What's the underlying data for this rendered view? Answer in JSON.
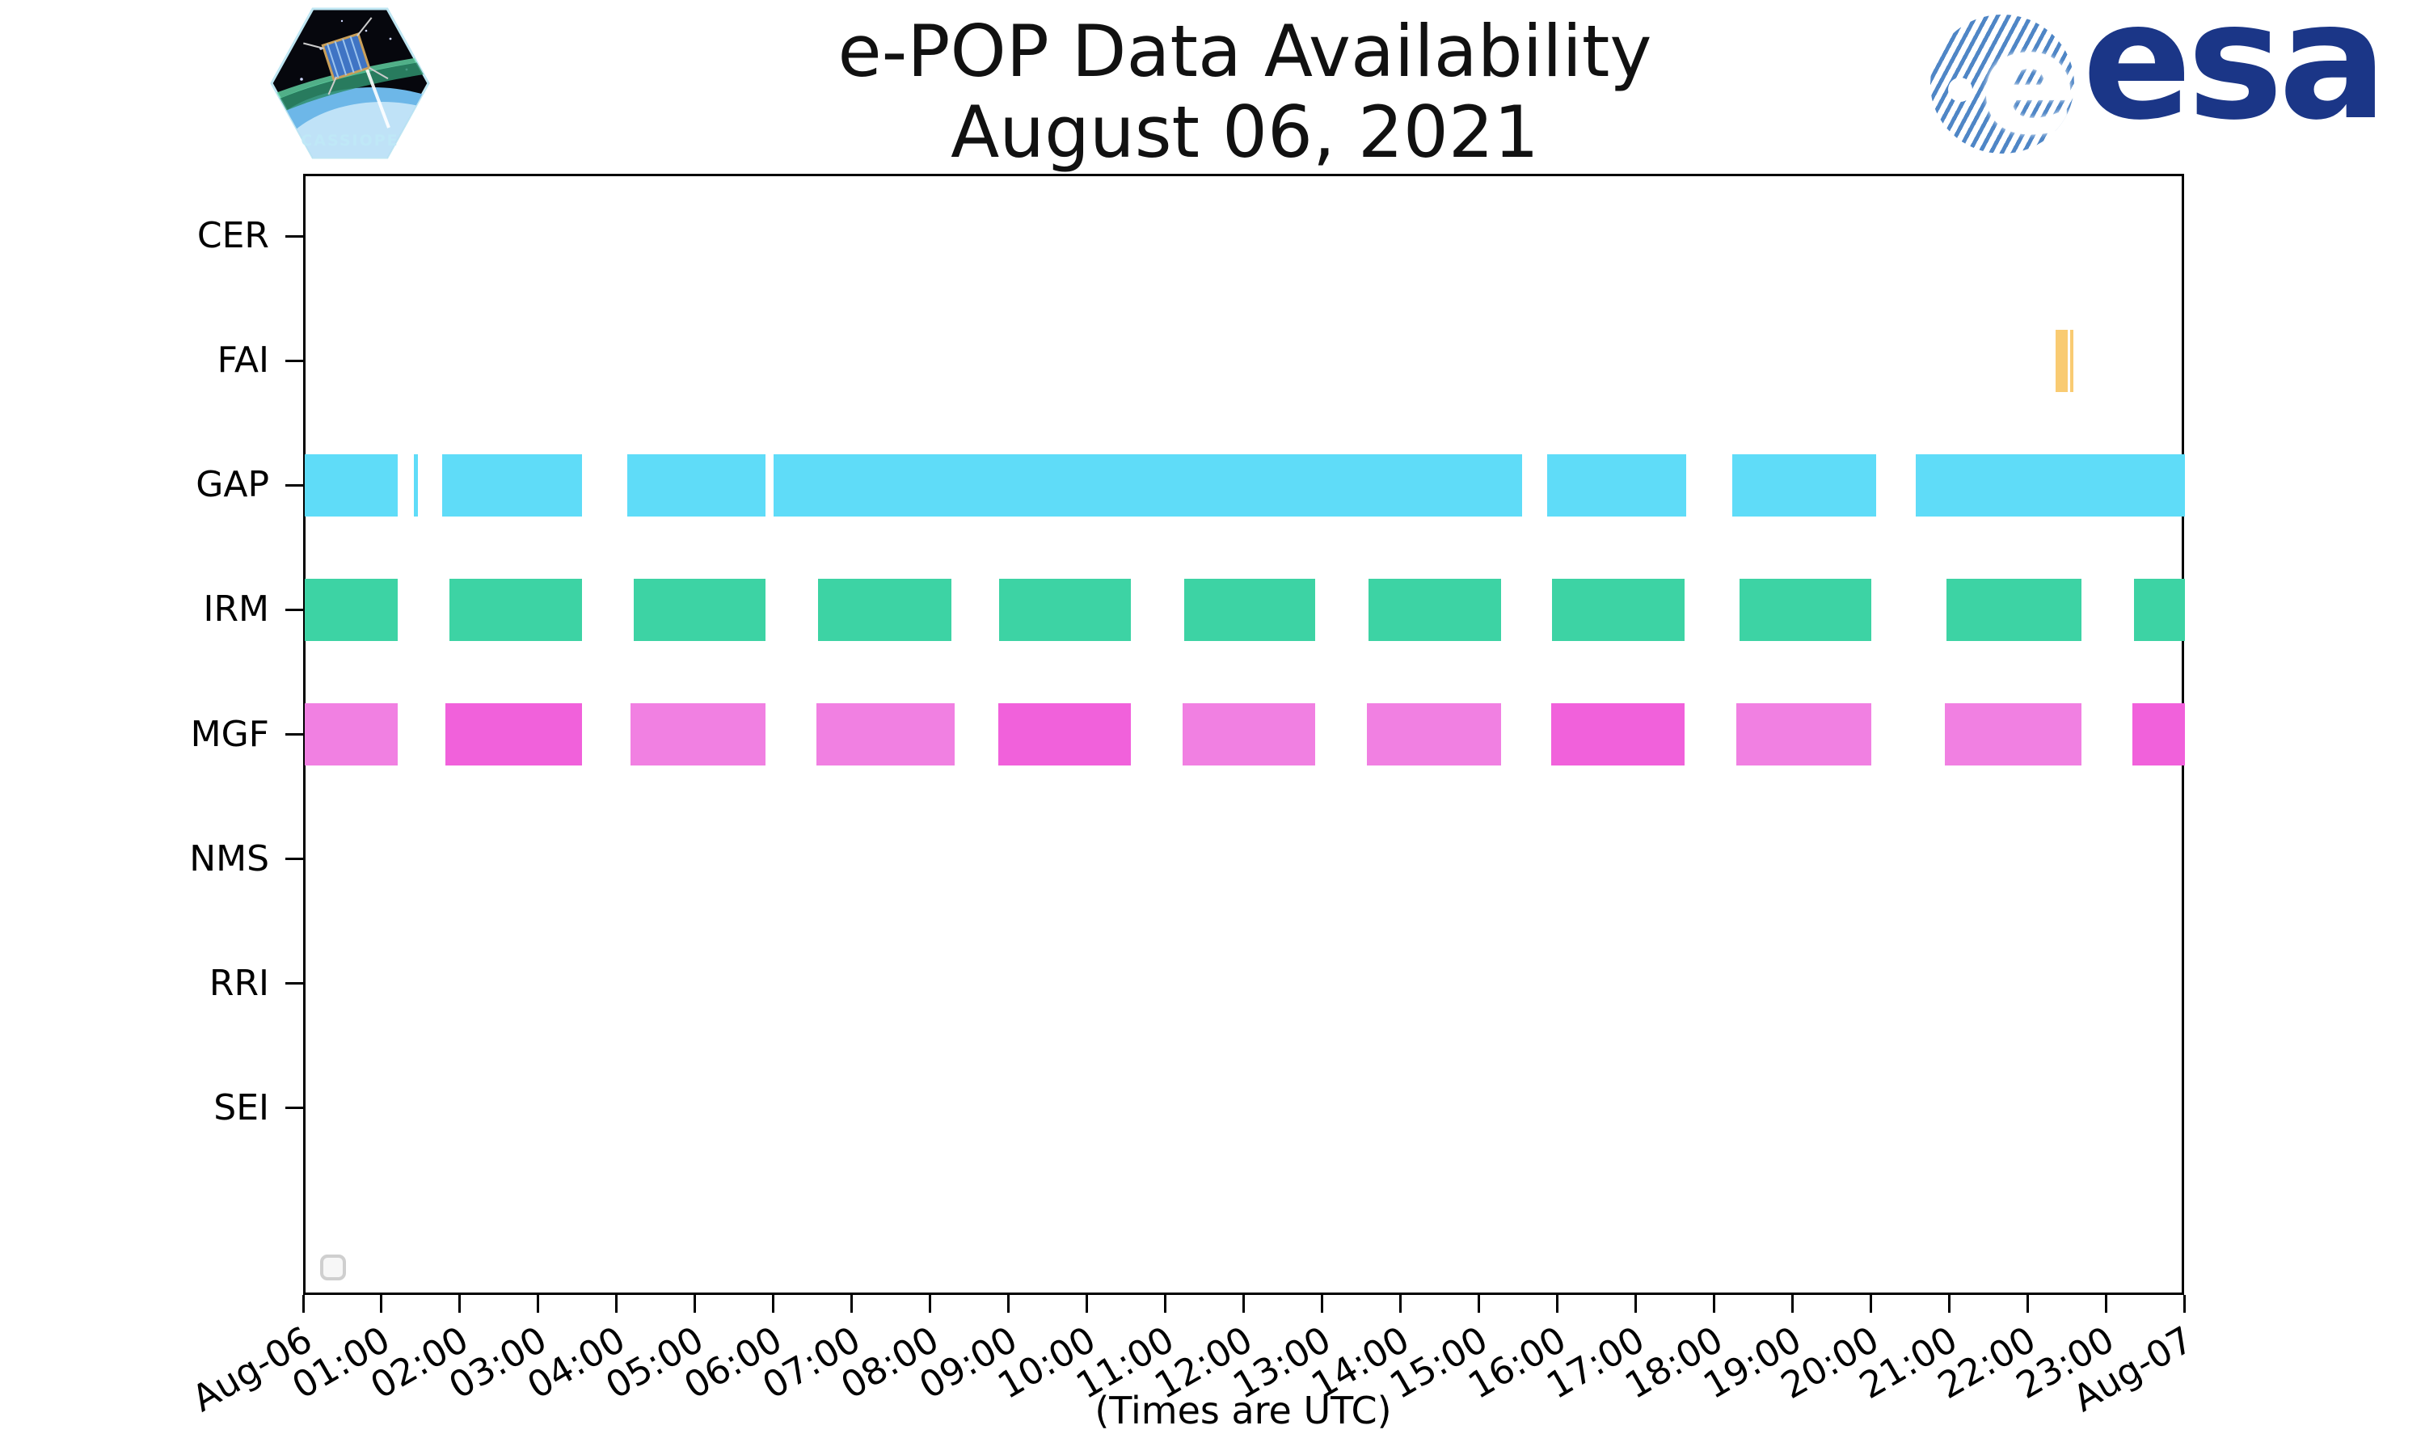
{
  "header": {
    "title_line1": "e-POP Data Availability",
    "title_line2": "August 06, 2021",
    "cassiope_label": "CASSIOPE",
    "esa_label": "esa",
    "esa_glyph": "e"
  },
  "footer": {
    "note": "(Times are UTC)"
  },
  "colors": {
    "fai_orange": "#f9cb72",
    "gap_cyan": "#5fdcf8",
    "irm_green": "#3dd3a4",
    "mgf_light": "#f180e2",
    "mgf_dark": "#f161db",
    "esa_navy": "#1b3687",
    "patch_sky": "#8fd8f2",
    "axis_black": "#000000"
  },
  "chart_data": {
    "type": "timeline",
    "title": "e-POP Data Availability",
    "subtitle": "August 06, 2021",
    "xlabel": "(Times are UTC)",
    "x_range_hours": [
      0,
      24
    ],
    "x_tick_interval_hours": 1,
    "x_tick_labels": [
      "Aug-06",
      "01:00",
      "02:00",
      "03:00",
      "04:00",
      "05:00",
      "06:00",
      "07:00",
      "08:00",
      "09:00",
      "10:00",
      "11:00",
      "12:00",
      "13:00",
      "14:00",
      "15:00",
      "16:00",
      "17:00",
      "18:00",
      "19:00",
      "20:00",
      "21:00",
      "22:00",
      "23:00",
      "Aug-07"
    ],
    "y_categories": [
      "CER",
      "FAI",
      "GAP",
      "IRM",
      "MGF",
      "NMS",
      "RRI",
      "SEI"
    ],
    "grid": false,
    "legend": "empty-box-bottom-left",
    "rows": [
      {
        "label": "CER",
        "color_key": "gap_cyan",
        "segments": []
      },
      {
        "label": "FAI",
        "color_key": "fai_orange",
        "segments": [
          {
            "start": 22.34,
            "end": 22.5
          },
          {
            "start": 22.53,
            "end": 22.57
          }
        ]
      },
      {
        "label": "GAP",
        "color_key": "gap_cyan",
        "segments": [
          {
            "start": 0.0,
            "end": 1.19
          },
          {
            "start": 1.4,
            "end": 1.45
          },
          {
            "start": 1.76,
            "end": 3.54
          },
          {
            "start": 4.12,
            "end": 5.88
          },
          {
            "start": 5.99,
            "end": 15.54
          },
          {
            "start": 15.86,
            "end": 17.63
          },
          {
            "start": 18.22,
            "end": 20.05
          },
          {
            "start": 20.56,
            "end": 24.0
          }
        ]
      },
      {
        "label": "IRM",
        "color_key": "irm_green",
        "segments": [
          {
            "start": 0.0,
            "end": 1.19
          },
          {
            "start": 1.85,
            "end": 3.54
          },
          {
            "start": 4.2,
            "end": 5.88
          },
          {
            "start": 6.55,
            "end": 8.26
          },
          {
            "start": 8.86,
            "end": 10.55
          },
          {
            "start": 11.23,
            "end": 12.9
          },
          {
            "start": 13.58,
            "end": 15.27
          },
          {
            "start": 15.92,
            "end": 17.61
          },
          {
            "start": 18.31,
            "end": 19.99
          },
          {
            "start": 20.95,
            "end": 22.67
          },
          {
            "start": 23.34,
            "end": 24.0
          }
        ]
      },
      {
        "label": "MGF",
        "color_key": "mgf_light",
        "segments": [
          {
            "start": 0.0,
            "end": 1.19,
            "variant": "light"
          },
          {
            "start": 1.8,
            "end": 3.54,
            "variant": "dark"
          },
          {
            "start": 4.16,
            "end": 5.88,
            "variant": "light"
          },
          {
            "start": 6.53,
            "end": 8.3,
            "variant": "light"
          },
          {
            "start": 8.85,
            "end": 10.55,
            "variant": "dark"
          },
          {
            "start": 11.21,
            "end": 12.9,
            "variant": "light"
          },
          {
            "start": 13.56,
            "end": 15.27,
            "variant": "light"
          },
          {
            "start": 15.91,
            "end": 17.61,
            "variant": "dark"
          },
          {
            "start": 18.27,
            "end": 19.99,
            "variant": "light"
          },
          {
            "start": 20.93,
            "end": 22.67,
            "variant": "light"
          },
          {
            "start": 23.32,
            "end": 24.0,
            "variant": "dark"
          }
        ]
      },
      {
        "label": "NMS",
        "color_key": "gap_cyan",
        "segments": []
      },
      {
        "label": "RRI",
        "color_key": "gap_cyan",
        "segments": []
      },
      {
        "label": "SEI",
        "color_key": "gap_cyan",
        "segments": []
      }
    ]
  }
}
